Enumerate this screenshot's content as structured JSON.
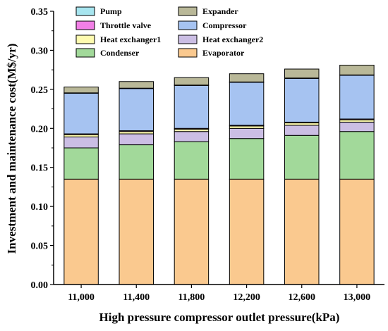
{
  "chart_data": {
    "type": "bar",
    "stacked": true,
    "categories": [
      "11,000",
      "11,400",
      "11,800",
      "12,200",
      "12,600",
      "13,000"
    ],
    "xlabel": "High pressure compressor outlet pressure(kPa)",
    "ylabel": "Investment and maintenance cost(M$/yr)",
    "ylim": [
      0,
      0.35
    ],
    "yticks": [
      "0.00",
      "0.05",
      "0.10",
      "0.15",
      "0.20",
      "0.25",
      "0.30",
      "0.35"
    ],
    "grid": false,
    "legend_position": "top",
    "series": [
      {
        "name": "Evaporator",
        "color": "#FAC98F",
        "values": [
          0.135,
          0.135,
          0.135,
          0.135,
          0.135,
          0.135
        ]
      },
      {
        "name": "Condenser",
        "color": "#A2D99A",
        "values": [
          0.04,
          0.044,
          0.048,
          0.052,
          0.056,
          0.061
        ]
      },
      {
        "name": "Heat exchanger2",
        "color": "#CBBEE4",
        "values": [
          0.014,
          0.014,
          0.013,
          0.013,
          0.013,
          0.012
        ]
      },
      {
        "name": "Heat exchanger1",
        "color": "#FEFBAF",
        "values": [
          0.003,
          0.003,
          0.003,
          0.003,
          0.003,
          0.003
        ]
      },
      {
        "name": "Throttle valve",
        "color": "#F27FE6",
        "values": [
          0.001,
          0.001,
          0.001,
          0.001,
          0.001,
          0.001
        ]
      },
      {
        "name": "Compressor",
        "color": "#A6C3F1",
        "values": [
          0.052,
          0.054,
          0.055,
          0.055,
          0.056,
          0.056
        ]
      },
      {
        "name": "Pump",
        "color": "#A7E5EF",
        "values": [
          0.0005,
          0.0005,
          0.0005,
          0.0005,
          0.0005,
          0.0005
        ]
      },
      {
        "name": "Expander",
        "color": "#B9B898",
        "values": [
          0.0075,
          0.0085,
          0.0095,
          0.0105,
          0.0115,
          0.0125
        ]
      }
    ],
    "legend_order": [
      "Pump",
      "Expander",
      "Throttle valve",
      "Compressor",
      "Heat exchanger1",
      "Heat exchanger2",
      "Condenser",
      "Evaporator"
    ]
  }
}
